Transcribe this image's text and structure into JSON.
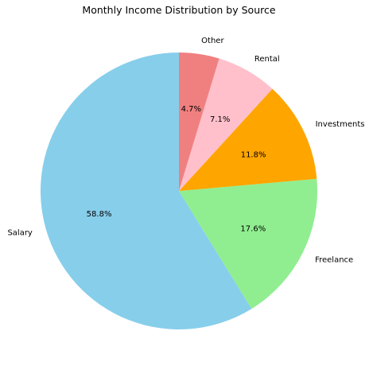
{
  "chart_data": {
    "type": "pie",
    "title": "Monthly Income Distribution by Source",
    "start_angle_deg": 90,
    "direction": "counterclockwise",
    "slices": [
      {
        "label": "Salary",
        "value": 58.8,
        "pct_label": "58.8%",
        "color": "#87CEEB"
      },
      {
        "label": "Freelance",
        "value": 17.6,
        "pct_label": "17.6%",
        "color": "#90EE90"
      },
      {
        "label": "Investments",
        "value": 11.8,
        "pct_label": "11.8%",
        "color": "#FFA500"
      },
      {
        "label": "Rental",
        "value": 7.1,
        "pct_label": "7.1%",
        "color": "#FFC0CB"
      },
      {
        "label": "Other",
        "value": 4.7,
        "pct_label": "4.7%",
        "color": "#F08080"
      }
    ]
  }
}
